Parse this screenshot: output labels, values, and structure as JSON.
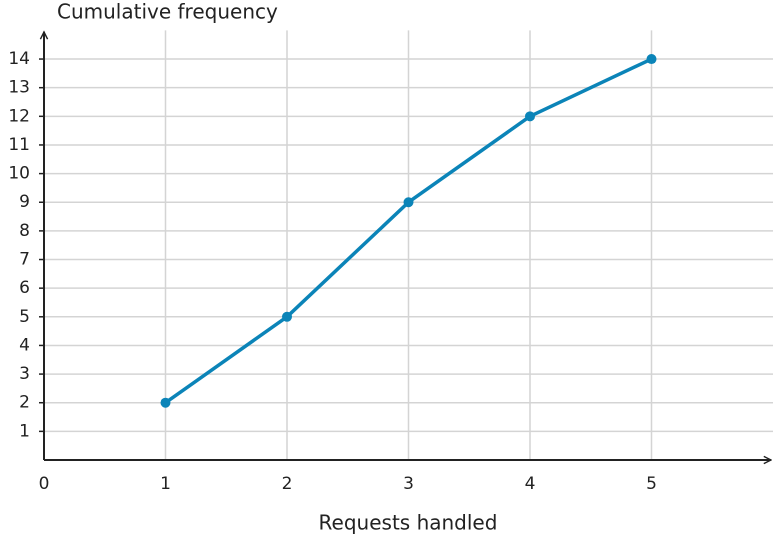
{
  "chart_data": {
    "type": "line",
    "y_label": "Cumulative frequency",
    "x_label": "Requests handled",
    "x": [
      1,
      2,
      3,
      4,
      5
    ],
    "values": [
      2,
      5,
      9,
      12,
      14
    ],
    "color": "#0b84b8",
    "xlim": [
      0,
      6
    ],
    "xticks": [
      0,
      1,
      2,
      3,
      4,
      5
    ],
    "ylim": [
      0,
      15
    ],
    "yticks": [
      1,
      2,
      3,
      4,
      5,
      6,
      7,
      8,
      9,
      10,
      11,
      12,
      13,
      14
    ],
    "grid": true
  }
}
